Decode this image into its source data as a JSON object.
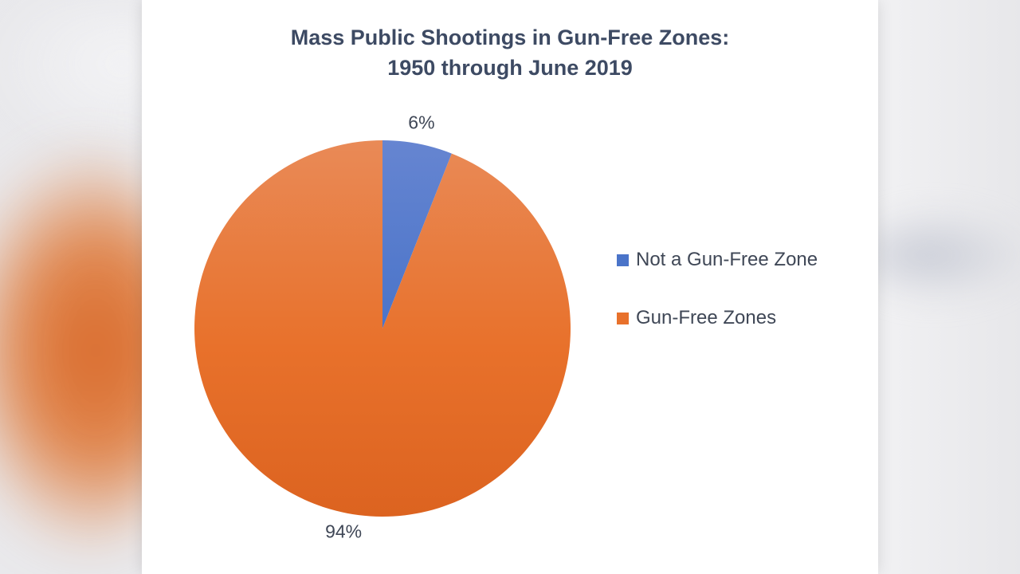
{
  "chart_data": {
    "type": "pie",
    "title_lines": [
      "Mass Public Shootings in Gun-Free Zones:",
      "1950 through June 2019"
    ],
    "slices": [
      {
        "label": "Not a Gun-Free Zone",
        "value": 6,
        "data_label": "6%",
        "color": "#4a74c9"
      },
      {
        "label": "Gun-Free Zones",
        "value": 94,
        "data_label": "94%",
        "color": "#e8712b"
      }
    ],
    "legend_position": "right"
  }
}
